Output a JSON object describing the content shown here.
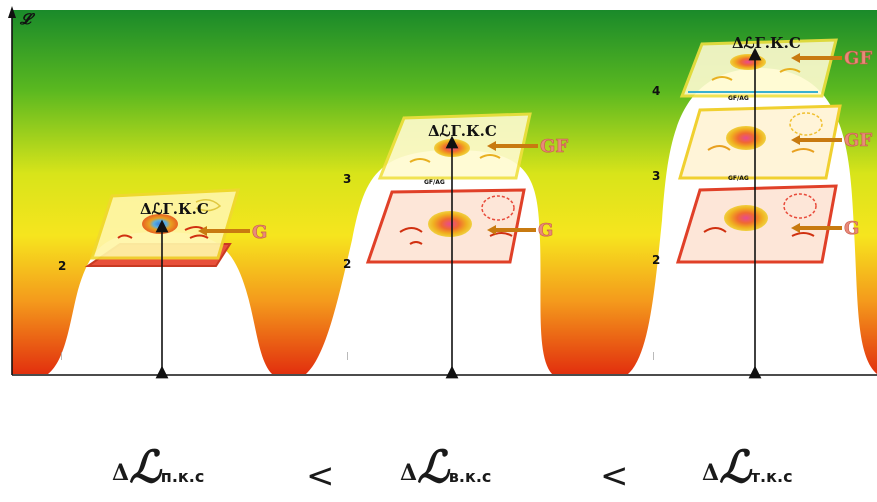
{
  "axis": {
    "y_label": "𝓛"
  },
  "level_labels": {
    "l2a": "2",
    "l2b": "2",
    "l3b": "3",
    "l2c": "2",
    "l3c": "3",
    "l4c": "4"
  },
  "panels": [
    {
      "top_label": "ΔℒГ.К.С",
      "side_labels": [
        "G"
      ],
      "floor_tick": "|"
    },
    {
      "top_label": "ΔℒГ.К.С",
      "side_labels": [
        "GF",
        "G"
      ],
      "floor_tick": "|"
    },
    {
      "top_label": "ΔℒГ.К.С",
      "side_labels": [
        "GF",
        "GF",
        "G"
      ],
      "floor_tick": "|"
    }
  ],
  "inner_labels": [
    "GF/AG",
    "GF/AG"
  ],
  "formula": {
    "delta": "Δ",
    "L": "ℒ",
    "t1": "п.к.с",
    "t2": "в.к.с",
    "t3": "т.к.с",
    "op1": "<",
    "op2": "<"
  },
  "colors": {
    "top": "#1a8a2a",
    "mid": "#f2ee22",
    "bottom": "#e83a10"
  }
}
